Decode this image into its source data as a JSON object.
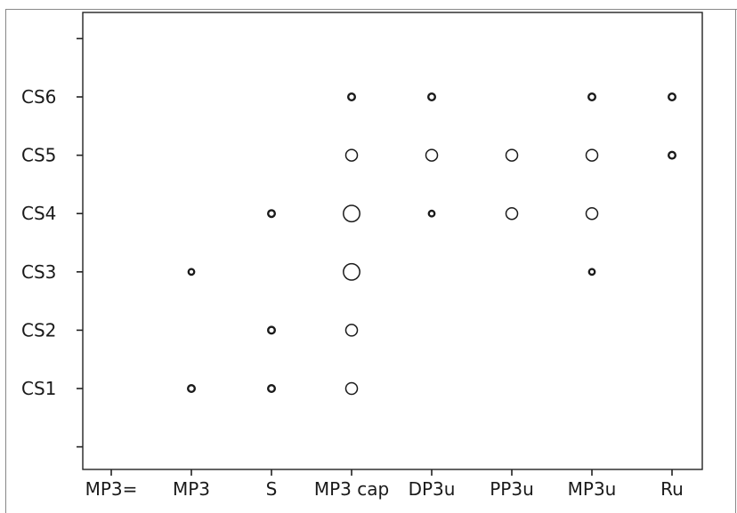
{
  "chart_data": {
    "type": "scatter",
    "title": "",
    "xlabel": "",
    "ylabel": "",
    "x_categories": [
      "MP3=",
      "MP3",
      "S",
      "MP3 cap",
      "DP3u",
      "PP3u",
      "MP3u",
      "Ru"
    ],
    "y_categories": [
      "CS1",
      "CS2",
      "CS3",
      "CS4",
      "CS5",
      "CS6"
    ],
    "grid": false,
    "legend": "none",
    "points": [
      {
        "x": "MP3",
        "y": "CS1",
        "size": 2
      },
      {
        "x": "MP3",
        "y": "CS3",
        "size": 1
      },
      {
        "x": "S",
        "y": "CS1",
        "size": 2
      },
      {
        "x": "S",
        "y": "CS2",
        "size": 2
      },
      {
        "x": "S",
        "y": "CS4",
        "size": 2
      },
      {
        "x": "MP3 cap",
        "y": "CS1",
        "size": 4
      },
      {
        "x": "MP3 cap",
        "y": "CS2",
        "size": 4
      },
      {
        "x": "MP3 cap",
        "y": "CS3",
        "size": 8
      },
      {
        "x": "MP3 cap",
        "y": "CS4",
        "size": 8
      },
      {
        "x": "MP3 cap",
        "y": "CS5",
        "size": 4
      },
      {
        "x": "MP3 cap",
        "y": "CS6",
        "size": 2
      },
      {
        "x": "DP3u",
        "y": "CS4",
        "size": 1
      },
      {
        "x": "DP3u",
        "y": "CS5",
        "size": 4
      },
      {
        "x": "DP3u",
        "y": "CS6",
        "size": 2
      },
      {
        "x": "PP3u",
        "y": "CS4",
        "size": 4
      },
      {
        "x": "PP3u",
        "y": "CS5",
        "size": 4
      },
      {
        "x": "MP3u",
        "y": "CS3",
        "size": 1
      },
      {
        "x": "MP3u",
        "y": "CS4",
        "size": 4
      },
      {
        "x": "MP3u",
        "y": "CS5",
        "size": 4
      },
      {
        "x": "MP3u",
        "y": "CS6",
        "size": 2
      },
      {
        "x": "Ru",
        "y": "CS5",
        "size": 2
      },
      {
        "x": "Ru",
        "y": "CS6",
        "size": 2
      }
    ]
  }
}
